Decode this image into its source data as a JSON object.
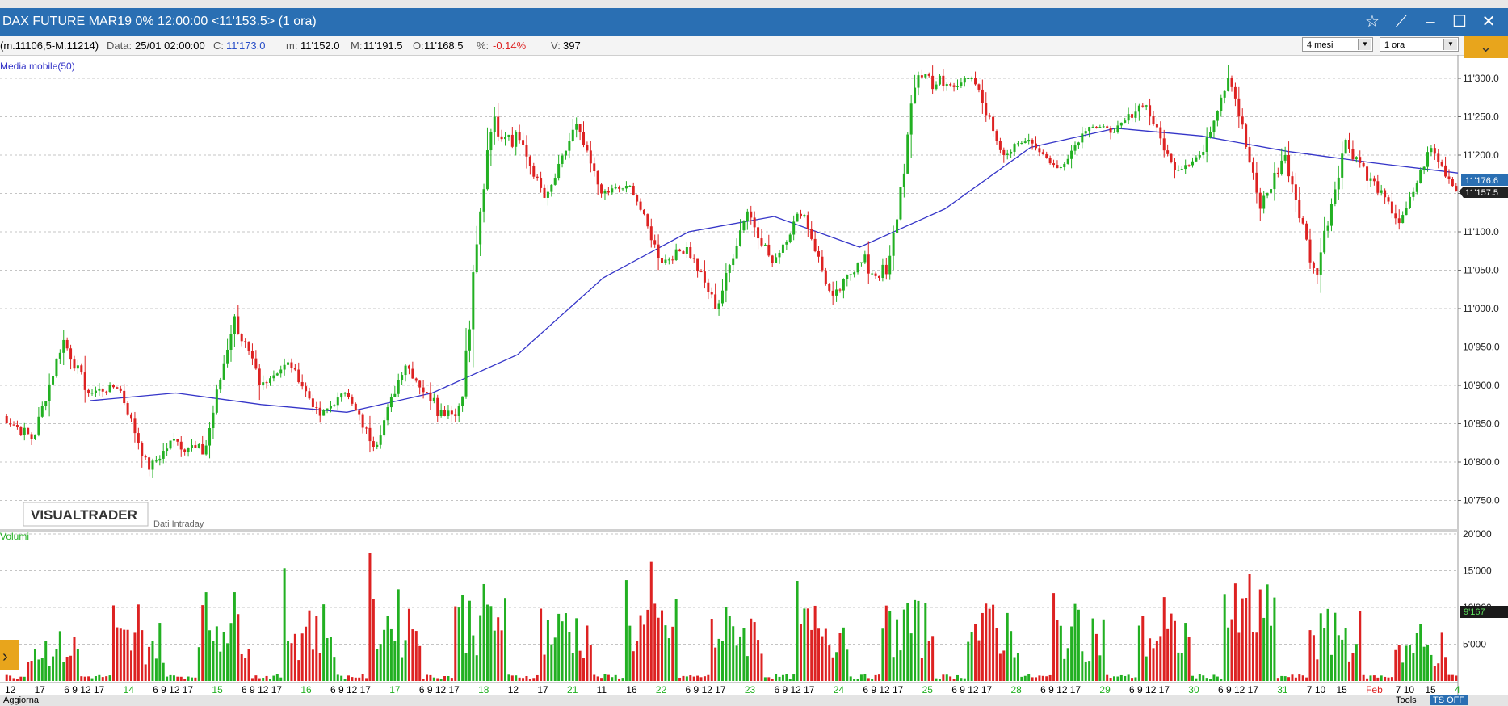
{
  "window": {
    "title": "DAX FUTURE MAR19 0% 12:00:00  <11'153.5> (1 ora)",
    "buttons": [
      "star-icon",
      "pin-icon",
      "minimize-icon",
      "maximize-icon",
      "close-icon"
    ]
  },
  "infobar": {
    "range_prefix": "(m.11106,5-M.11214)",
    "data_label": "Data:",
    "data_value": "25/01 02:00:00",
    "c_label": "C:",
    "c_value": "11'173.0",
    "m_label": "m:",
    "m_value": "11'152.0",
    "M_label": "M:",
    "M_value": "11'191.5",
    "o_label": "O:",
    "o_value": "11'168.5",
    "pct_label": "%:",
    "pct_value": "-0.14%",
    "v_label": "V:",
    "v_value": "397",
    "period_select": "4 mesi",
    "interval_select": "1 ora"
  },
  "colors": {
    "up": "#22b022",
    "down": "#dd2222",
    "ma": "#3535c8",
    "grid": "#c4c4c4",
    "titlebar": "#2a6fb3",
    "volume_label": "#22b022"
  },
  "price_panel": {
    "indicator_label": "Media mobile(50)",
    "logo": "VISUALTRADER",
    "source_note": "Dati Intraday",
    "y_ticks": [
      10750,
      10800,
      10850,
      10900,
      10950,
      11000,
      11050,
      11100,
      11150,
      11200,
      11250,
      11300
    ],
    "y_tick_labels": [
      "10'750.0",
      "10'800.0",
      "10'850.0",
      "10'900.0",
      "10'950.0",
      "11'000.0",
      "11'050.0",
      "11'100.0",
      "11'150.0",
      "11'200.0",
      "11'250.0",
      "11'300.0"
    ],
    "price_badge": "11'157.5",
    "ma_badge": "11'176.6"
  },
  "volume_panel": {
    "label": "Volumi",
    "y_ticks": [
      5000,
      10000,
      15000,
      20000
    ],
    "y_tick_labels": [
      "5'000",
      "10'000",
      "15'000",
      "20'000"
    ],
    "volume_badge": "9'167"
  },
  "x_axis": {
    "labels": [
      {
        "t": "12",
        "c": "#000"
      },
      {
        "t": "17",
        "c": "#000"
      },
      {
        "t": "6 9 12",
        "c": "#000"
      },
      {
        "t": "17",
        "c": "#000"
      },
      {
        "t": "14",
        "c": "#22b022"
      },
      {
        "t": "6 9 12",
        "c": "#000"
      },
      {
        "t": "17",
        "c": "#000"
      },
      {
        "t": "15",
        "c": "#22b022"
      },
      {
        "t": "6 9 12",
        "c": "#000"
      },
      {
        "t": "17",
        "c": "#000"
      },
      {
        "t": "16",
        "c": "#22b022"
      },
      {
        "t": "6 9 12",
        "c": "#000"
      },
      {
        "t": "17",
        "c": "#000"
      },
      {
        "t": "17",
        "c": "#22b022"
      },
      {
        "t": "6 9 12",
        "c": "#000"
      },
      {
        "t": "17",
        "c": "#000"
      },
      {
        "t": "18",
        "c": "#22b022"
      },
      {
        "t": "12",
        "c": "#000"
      },
      {
        "t": "17",
        "c": "#000"
      },
      {
        "t": "21",
        "c": "#22b022"
      },
      {
        "t": "11",
        "c": "#000"
      },
      {
        "t": "16",
        "c": "#000"
      },
      {
        "t": "22",
        "c": "#22b022"
      },
      {
        "t": "6 9 12",
        "c": "#000"
      },
      {
        "t": "17",
        "c": "#000"
      },
      {
        "t": "23",
        "c": "#22b022"
      },
      {
        "t": "6 9 12",
        "c": "#000"
      },
      {
        "t": "17",
        "c": "#000"
      },
      {
        "t": "24",
        "c": "#22b022"
      },
      {
        "t": "6 9 12",
        "c": "#000"
      },
      {
        "t": "17",
        "c": "#000"
      },
      {
        "t": "25",
        "c": "#22b022"
      },
      {
        "t": "6 9 12",
        "c": "#000"
      },
      {
        "t": "17",
        "c": "#000"
      },
      {
        "t": "28",
        "c": "#22b022"
      },
      {
        "t": "6 9 12",
        "c": "#000"
      },
      {
        "t": "17",
        "c": "#000"
      },
      {
        "t": "29",
        "c": "#22b022"
      },
      {
        "t": "6 9 12",
        "c": "#000"
      },
      {
        "t": "17",
        "c": "#000"
      },
      {
        "t": "30",
        "c": "#22b022"
      },
      {
        "t": "6 9 12",
        "c": "#000"
      },
      {
        "t": "17",
        "c": "#000"
      },
      {
        "t": "31",
        "c": "#22b022"
      },
      {
        "t": "7 10",
        "c": "#000"
      },
      {
        "t": "15",
        "c": "#000"
      },
      {
        "t": "Feb",
        "c": "#dd2222"
      },
      {
        "t": "7 10",
        "c": "#000"
      },
      {
        "t": "15",
        "c": "#000"
      },
      {
        "t": "4",
        "c": "#22b022"
      }
    ]
  },
  "bottom": {
    "left_label": "Aggiorna",
    "tools_label": "Tools",
    "ts_label": "TS OFF"
  },
  "chart_data": {
    "type": "candlestick",
    "interval": "1 ora",
    "days": [
      "11",
      "14",
      "15",
      "16",
      "17",
      "18",
      "21",
      "22",
      "23",
      "24",
      "25",
      "28",
      "29",
      "30",
      "31",
      "Feb 1",
      "4"
    ],
    "series": [
      {
        "name": "Media mobile(50)",
        "values_by_day_end": [
          10880,
          10890,
          10875,
          10865,
          10890,
          10940,
          11040,
          11100,
          11120,
          11080,
          11130,
          11210,
          11235,
          11225,
          11205,
          11190,
          11176.6
        ]
      }
    ],
    "daily_ohlc": [
      {
        "day": "11",
        "open": 10860,
        "high": 10960,
        "low": 10830,
        "close": 10890
      },
      {
        "day": "14",
        "open": 10890,
        "high": 10900,
        "low": 10790,
        "close": 10830
      },
      {
        "day": "15",
        "open": 10830,
        "high": 10990,
        "low": 10810,
        "close": 10900
      },
      {
        "day": "16",
        "open": 10900,
        "high": 10930,
        "low": 10860,
        "close": 10890
      },
      {
        "day": "17",
        "open": 10890,
        "high": 10930,
        "low": 10820,
        "close": 10880
      },
      {
        "day": "18",
        "open": 10880,
        "high": 11250,
        "low": 10860,
        "close": 11230
      },
      {
        "day": "21",
        "open": 11230,
        "high": 11240,
        "low": 11140,
        "close": 11150
      },
      {
        "day": "22",
        "open": 11150,
        "high": 11160,
        "low": 11060,
        "close": 11080
      },
      {
        "day": "23",
        "open": 11080,
        "high": 11130,
        "low": 11000,
        "close": 11060
      },
      {
        "day": "24",
        "open": 11060,
        "high": 11130,
        "low": 11010,
        "close": 11060
      },
      {
        "day": "25",
        "open": 11060,
        "high": 11310,
        "low": 11040,
        "close": 11290
      },
      {
        "day": "28",
        "open": 11290,
        "high": 11300,
        "low": 11200,
        "close": 11220
      },
      {
        "day": "29",
        "open": 11220,
        "high": 11240,
        "low": 11180,
        "close": 11230
      },
      {
        "day": "30",
        "open": 11230,
        "high": 11270,
        "low": 11180,
        "close": 11200
      },
      {
        "day": "31",
        "open": 11200,
        "high": 11310,
        "low": 11130,
        "close": 11200
      },
      {
        "day": "Feb 1",
        "open": 11200,
        "high": 11220,
        "low": 11040,
        "close": 11170
      },
      {
        "day": "4",
        "open": 11170,
        "high": 11210,
        "low": 11110,
        "close": 11153.5
      }
    ],
    "volume_peaks_by_day": [
      10000,
      12000,
      18000,
      16000,
      18000,
      19000,
      15000,
      16500,
      15000,
      16000,
      16000,
      15500,
      15000,
      13500,
      19000,
      14000,
      10000
    ],
    "ylim": [
      10720,
      11320
    ],
    "volume_ylim": [
      0,
      20000
    ],
    "last_close": 11153.5
  }
}
